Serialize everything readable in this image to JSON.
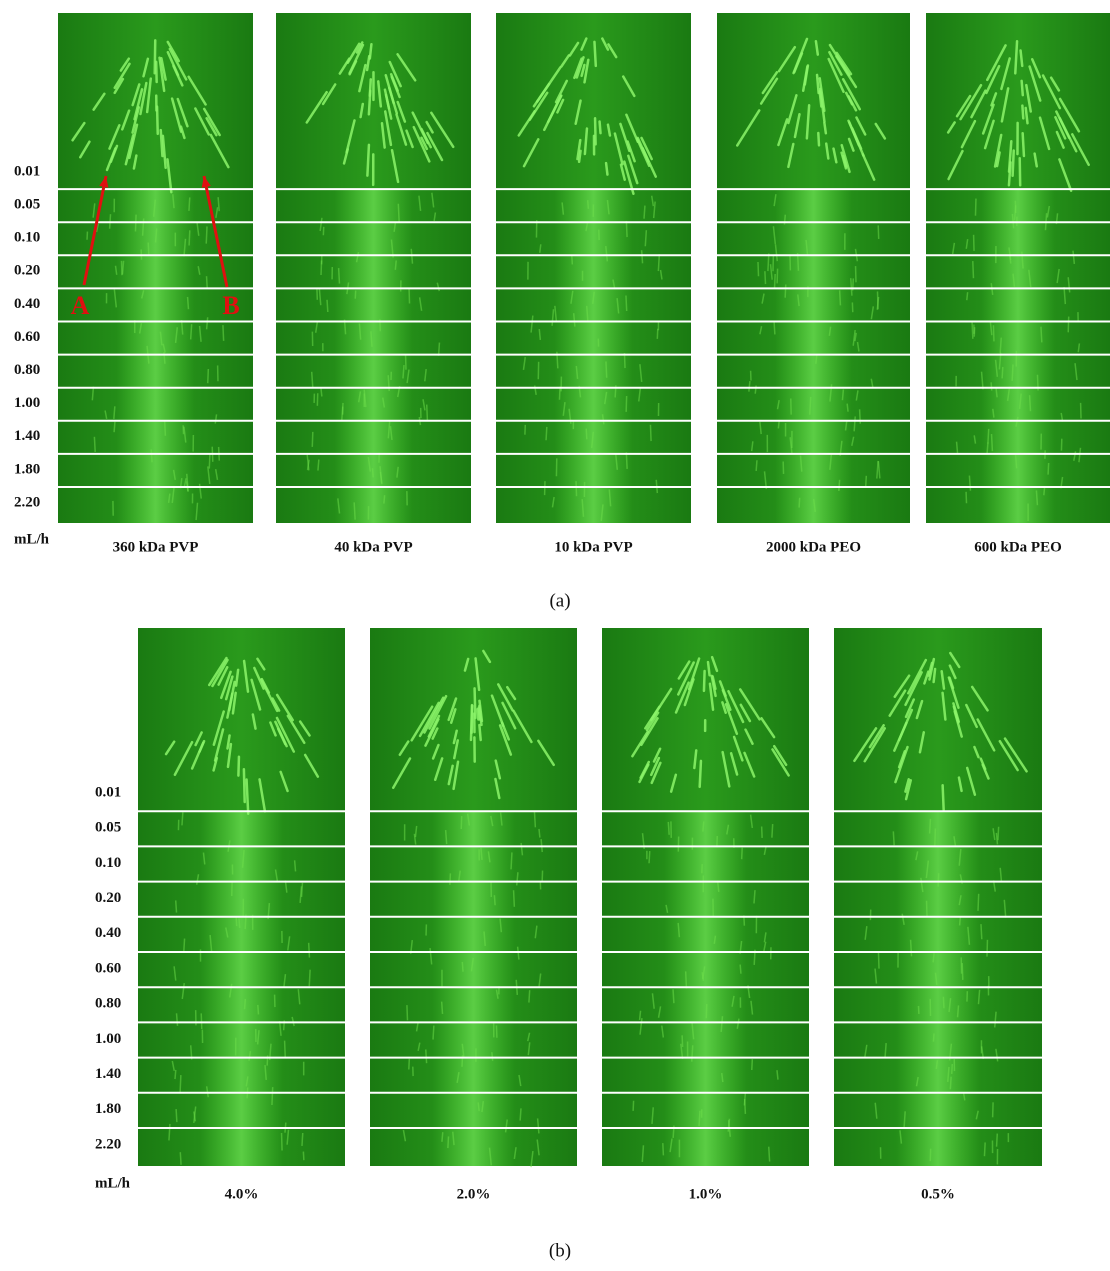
{
  "panel_a": {
    "row_labels": [
      "0.01",
      "0.05",
      "0.10",
      "0.20",
      "0.40",
      "0.60",
      "0.80",
      "1.00",
      "1.40",
      "1.80",
      "2.20"
    ],
    "unit": "mL/h",
    "columns": [
      "360 kDa PVP",
      "40 kDa PVP",
      "10 kDa PVP",
      "2000 kDa PEO",
      "600 kDa PEO"
    ],
    "annotations": [
      "A",
      "B"
    ],
    "caption": "(a)"
  },
  "panel_b": {
    "row_labels": [
      "0.01",
      "0.05",
      "0.10",
      "0.20",
      "0.40",
      "0.60",
      "0.80",
      "1.00",
      "1.40",
      "1.80",
      "2.20"
    ],
    "unit": "mL/h",
    "columns": [
      "4.0%",
      "2.0%",
      "1.0%",
      "0.5%"
    ],
    "caption": "(b)"
  }
}
